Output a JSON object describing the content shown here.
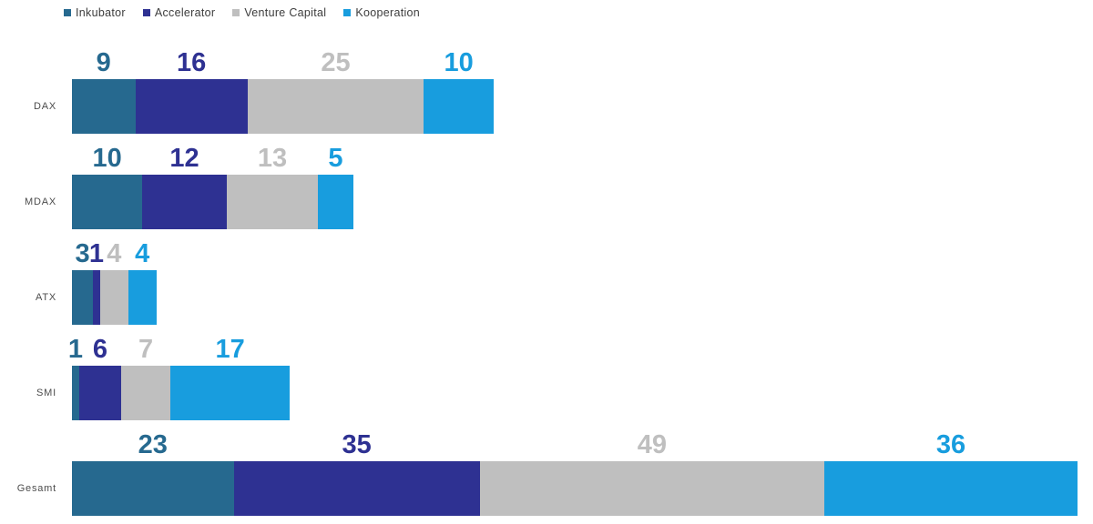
{
  "chart_data": {
    "type": "bar",
    "orientation": "horizontal",
    "stacked": true,
    "title": "",
    "xlabel": "",
    "ylabel": "",
    "grid": false,
    "axes_visible": false,
    "legend_position": "top-left",
    "data_labels": "above-segment-centers",
    "x_max": 143,
    "categories": [
      "DAX",
      "MDAX",
      "ATX",
      "SMI",
      "Gesamt"
    ],
    "series": [
      {
        "name": "Inkubator",
        "color": "#26698F",
        "values": [
          9,
          10,
          3,
          1,
          23
        ]
      },
      {
        "name": "Accelerator",
        "color": "#2E3192",
        "values": [
          16,
          12,
          1,
          6,
          35
        ]
      },
      {
        "name": "Venture Capital",
        "color": "#BFBFBF",
        "values": [
          25,
          13,
          4,
          7,
          49
        ]
      },
      {
        "name": "Kooperation",
        "color": "#189DDE",
        "values": [
          10,
          5,
          4,
          17,
          36
        ]
      }
    ],
    "totals": [
      60,
      40,
      12,
      31,
      143
    ]
  },
  "styles": {
    "background": "#FFFFFF",
    "category_label_color": "#4C4C4C",
    "legend_text_color": "#3D3D3D"
  }
}
